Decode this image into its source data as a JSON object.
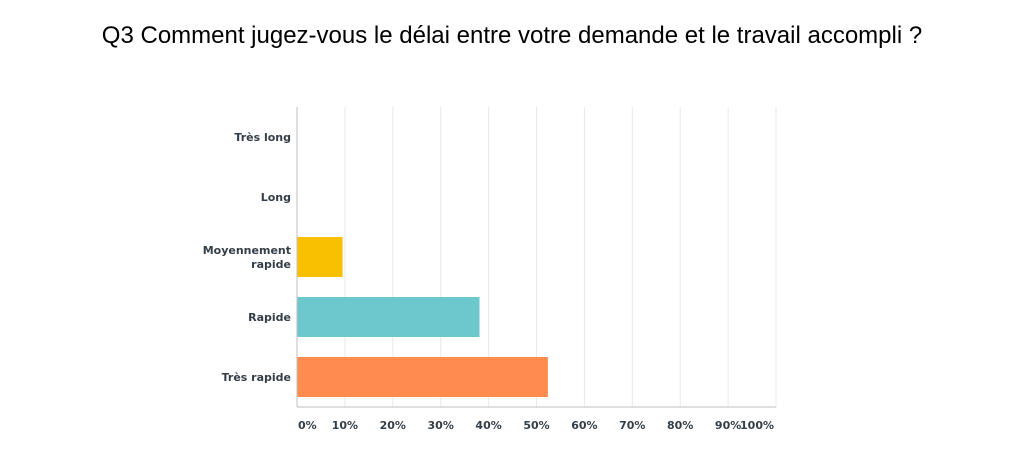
{
  "chart_data": {
    "type": "bar",
    "orientation": "horizontal",
    "title": "Q3 Comment jugez-vous le délai entre votre demande et le travail accompli ?",
    "categories": [
      "Très long",
      "Long",
      "Moyennement rapide",
      "Rapide",
      "Très rapide"
    ],
    "category_lines": [
      [
        "Très long"
      ],
      [
        "Long"
      ],
      [
        "Moyennement",
        "rapide"
      ],
      [
        "Rapide"
      ],
      [
        "Très rapide"
      ]
    ],
    "values": [
      0,
      0,
      9.52,
      38.1,
      52.38
    ],
    "colors": [
      "#f45c5c",
      "#5b7ee6",
      "#f8c000",
      "#6cc8cc",
      "#ff8b4f"
    ],
    "xlim": [
      0,
      100
    ],
    "ticks": [
      0,
      10,
      20,
      30,
      40,
      50,
      60,
      70,
      80,
      90,
      100
    ],
    "tick_labels": [
      "0%",
      "10%",
      "20%",
      "30%",
      "40%",
      "50%",
      "60%",
      "70%",
      "80%",
      "90%",
      "100%"
    ],
    "grid": true
  }
}
